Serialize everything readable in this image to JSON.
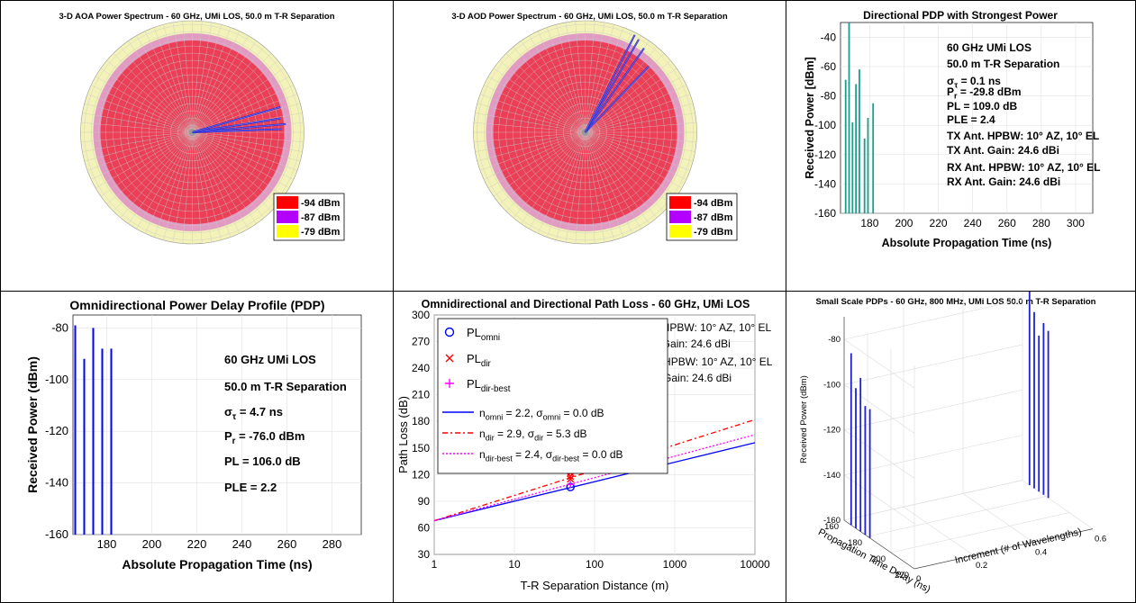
{
  "chart_data": [
    {
      "type": "polar",
      "title": "3-D AOA Power Spectrum - 60 GHz, UMi LOS, 50.0 m T-R Separation",
      "legend": {
        "position": "bottom-right",
        "items": [
          {
            "label": "-94 dBm",
            "color": "#ff0000"
          },
          {
            "label": "-87 dBm",
            "color": "#b400ff"
          },
          {
            "label": "-79 dBm",
            "color": "#ffff00"
          }
        ]
      },
      "spikes": [
        {
          "az": 358,
          "r": 0.8
        },
        {
          "az": 355,
          "r": 0.84
        },
        {
          "az": 351,
          "r": 0.8
        },
        {
          "az": 344,
          "r": 0.82
        }
      ]
    },
    {
      "type": "polar",
      "title": "3-D AOD Power Spectrum - 60 GHz, UMi LOS, 50.0 m T-R Separation",
      "legend": {
        "position": "bottom-right",
        "items": [
          {
            "label": "-94 dBm",
            "color": "#ff0000"
          },
          {
            "label": "-87 dBm",
            "color": "#b400ff"
          },
          {
            "label": "-79 dBm",
            "color": "#ffff00"
          }
        ]
      },
      "spikes": [
        {
          "az": 314,
          "r": 0.82
        },
        {
          "az": 305,
          "r": 0.92
        },
        {
          "az": 300,
          "r": 0.96
        },
        {
          "az": 297,
          "r": 0.98
        }
      ]
    },
    {
      "type": "stem",
      "title": "Directional PDP with Strongest Power",
      "xlabel": "Absolute Propagation Time (ns)",
      "ylabel": "Received Power [dBm]",
      "xlim": [
        163,
        310
      ],
      "ylim": [
        -160,
        -30
      ],
      "xticks": [
        180,
        200,
        220,
        240,
        260,
        280,
        300
      ],
      "yticks": [
        -40,
        -60,
        -80,
        -100,
        -120,
        -140,
        -160
      ],
      "color": "#1a9e8c",
      "x": [
        166,
        168,
        170,
        172,
        174,
        177,
        179,
        182
      ],
      "y": [
        -69,
        -30,
        -98,
        -72,
        -62,
        -109,
        -95,
        -85
      ],
      "annotation_lines": [
        "60 GHz UMi LOS",
        "50.0 m T-R Separation",
        "σ_τ = 0.1 ns",
        "P_r = -29.8 dBm",
        "PL = 109.0 dB",
        "PLE = 2.4",
        "TX Ant. HPBW: 10° AZ, 10° EL",
        "TX Ant. Gain: 24.6 dBi",
        "RX Ant. HPBW: 10° AZ, 10° EL",
        "RX Ant. Gain: 24.6 dBi"
      ]
    },
    {
      "type": "stem",
      "title": "Omnidirectional Power Delay Profile (PDP)",
      "xlabel": "Absolute Propagation Time (ns)",
      "ylabel": "Received Power (dBm)",
      "xlim": [
        165,
        293
      ],
      "ylim": [
        -160,
        -75
      ],
      "xticks": [
        180,
        200,
        220,
        240,
        260,
        280
      ],
      "yticks": [
        -80,
        -100,
        -120,
        -140,
        -160
      ],
      "color": "#0000ff",
      "x": [
        166,
        170,
        174,
        178,
        182
      ],
      "y": [
        -79,
        -92,
        -80,
        -88,
        -88
      ],
      "annotation_lines": [
        "60 GHz UMi LOS",
        "50.0 m T-R Separation",
        "σ_τ = 4.7 ns",
        "P_r = -76.0 dBm",
        "PL = 106.0 dB",
        "PLE = 2.2"
      ]
    },
    {
      "type": "line",
      "title": "Omnidirectional and Directional Path Loss - 60 GHz, UMi LOS",
      "xlabel": "T-R Separation Distance (m)",
      "ylabel": "Path Loss (dB)",
      "xscale": "log",
      "xlim": [
        1,
        10000
      ],
      "ylim": [
        30,
        300
      ],
      "xticks": [
        "1",
        "10",
        "100",
        "1000",
        "10000"
      ],
      "yticks": [
        30,
        60,
        90,
        120,
        150,
        180,
        210,
        240,
        270,
        300
      ],
      "points": [
        {
          "name": "PL_omni",
          "marker": "o",
          "color": "#0000ff",
          "x": [
            50
          ],
          "y": [
            106
          ]
        },
        {
          "name": "PL_dir",
          "marker": "x",
          "color": "#ff0000",
          "x": [
            50,
            50,
            50
          ],
          "y": [
            122,
            118,
            115
          ]
        },
        {
          "name": "PL_dir-best",
          "marker": "+",
          "color": "#ff00ff",
          "x": [
            50
          ],
          "y": [
            109
          ]
        }
      ],
      "fits": [
        {
          "label": "n_omni = 2.2, σ_omni = 0.0 dB",
          "color": "#0000ff",
          "dash": "",
          "x": [
            1,
            10000
          ],
          "y": [
            68,
            156
          ]
        },
        {
          "label": "n_dir = 2.9, σ_dir = 5.3 dB",
          "color": "#ff0000",
          "dash": "6,3,2,3",
          "x": [
            1,
            10000
          ],
          "y": [
            68,
            182
          ]
        },
        {
          "label": "n_dir-best = 2.4, σ_dir-best = 0.0 dB",
          "color": "#ff00ff",
          "dash": "2,2",
          "x": [
            1,
            10000
          ],
          "y": [
            68,
            165
          ]
        }
      ],
      "annotation_lines": [
        "TX Ant. HPBW: 10° AZ, 10° EL",
        "TX Ant. Gain: 24.6 dBi",
        "RX Ant. HPBW: 10° AZ, 10° EL",
        "RX Ant. Gain: 24.6 dBi"
      ]
    },
    {
      "type": "stem3d",
      "title": "Small Scale PDPs - 60 GHz, 800 MHz, UMi LOS 50.0 m T-R Separation",
      "zlabel": "Received Power (dBm)",
      "xlabel": "Propagation Time Delay (ns)",
      "ylabel": "Increment (# of Wavelengths)",
      "zticks": [
        -80,
        -100,
        -120,
        -140,
        -160
      ],
      "delay_ticks": [
        160,
        180,
        200,
        220
      ],
      "increment_ticks": [
        "0",
        "0.2",
        "0.4",
        "0.6"
      ],
      "groups": [
        {
          "increment": 0,
          "delays": [
            166,
            170,
            174,
            178,
            182
          ],
          "powers": [
            -84,
            -98,
            -92,
            -103,
            -103
          ]
        },
        {
          "increment": 0.6,
          "delays": [
            166,
            170,
            174,
            178,
            182
          ],
          "powers": [
            -73,
            -82,
            -91,
            -84,
            -86
          ]
        }
      ]
    }
  ]
}
